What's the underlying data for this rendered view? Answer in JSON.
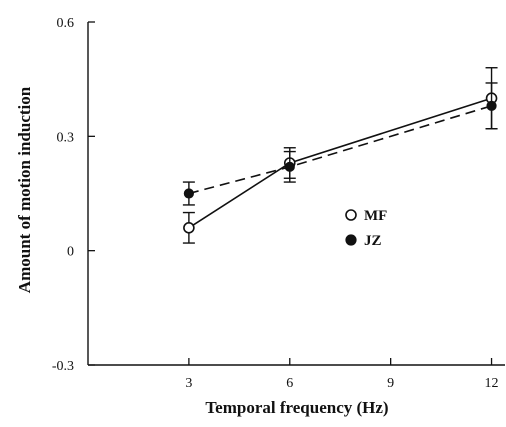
{
  "chart_data": {
    "type": "line",
    "xlabel": "Temporal frequency (Hz)",
    "ylabel": "Amount of motion induction",
    "xlim": [
      0,
      12.4
    ],
    "ylim": [
      -0.3,
      0.6
    ],
    "x_ticks": [
      3,
      6,
      9,
      12
    ],
    "y_ticks": [
      -0.3,
      0,
      0.3,
      0.6
    ],
    "x_tick_labels": [
      "3",
      "6",
      "9",
      "12"
    ],
    "y_tick_labels": [
      "-0.3",
      "0",
      "0.3",
      "0.6"
    ],
    "grid": false,
    "legend_position": "center-right",
    "series": [
      {
        "name": "MF",
        "marker": "open-circle",
        "line_style": "solid",
        "x": [
          3,
          6,
          12
        ],
        "y": [
          0.06,
          0.23,
          0.4
        ],
        "error": [
          0.04,
          0.04,
          0.08
        ]
      },
      {
        "name": "JZ",
        "marker": "filled-circle",
        "line_style": "dashed",
        "x": [
          3,
          6,
          12
        ],
        "y": [
          0.15,
          0.22,
          0.38
        ],
        "error": [
          0.03,
          0.04,
          0.06
        ]
      }
    ]
  }
}
